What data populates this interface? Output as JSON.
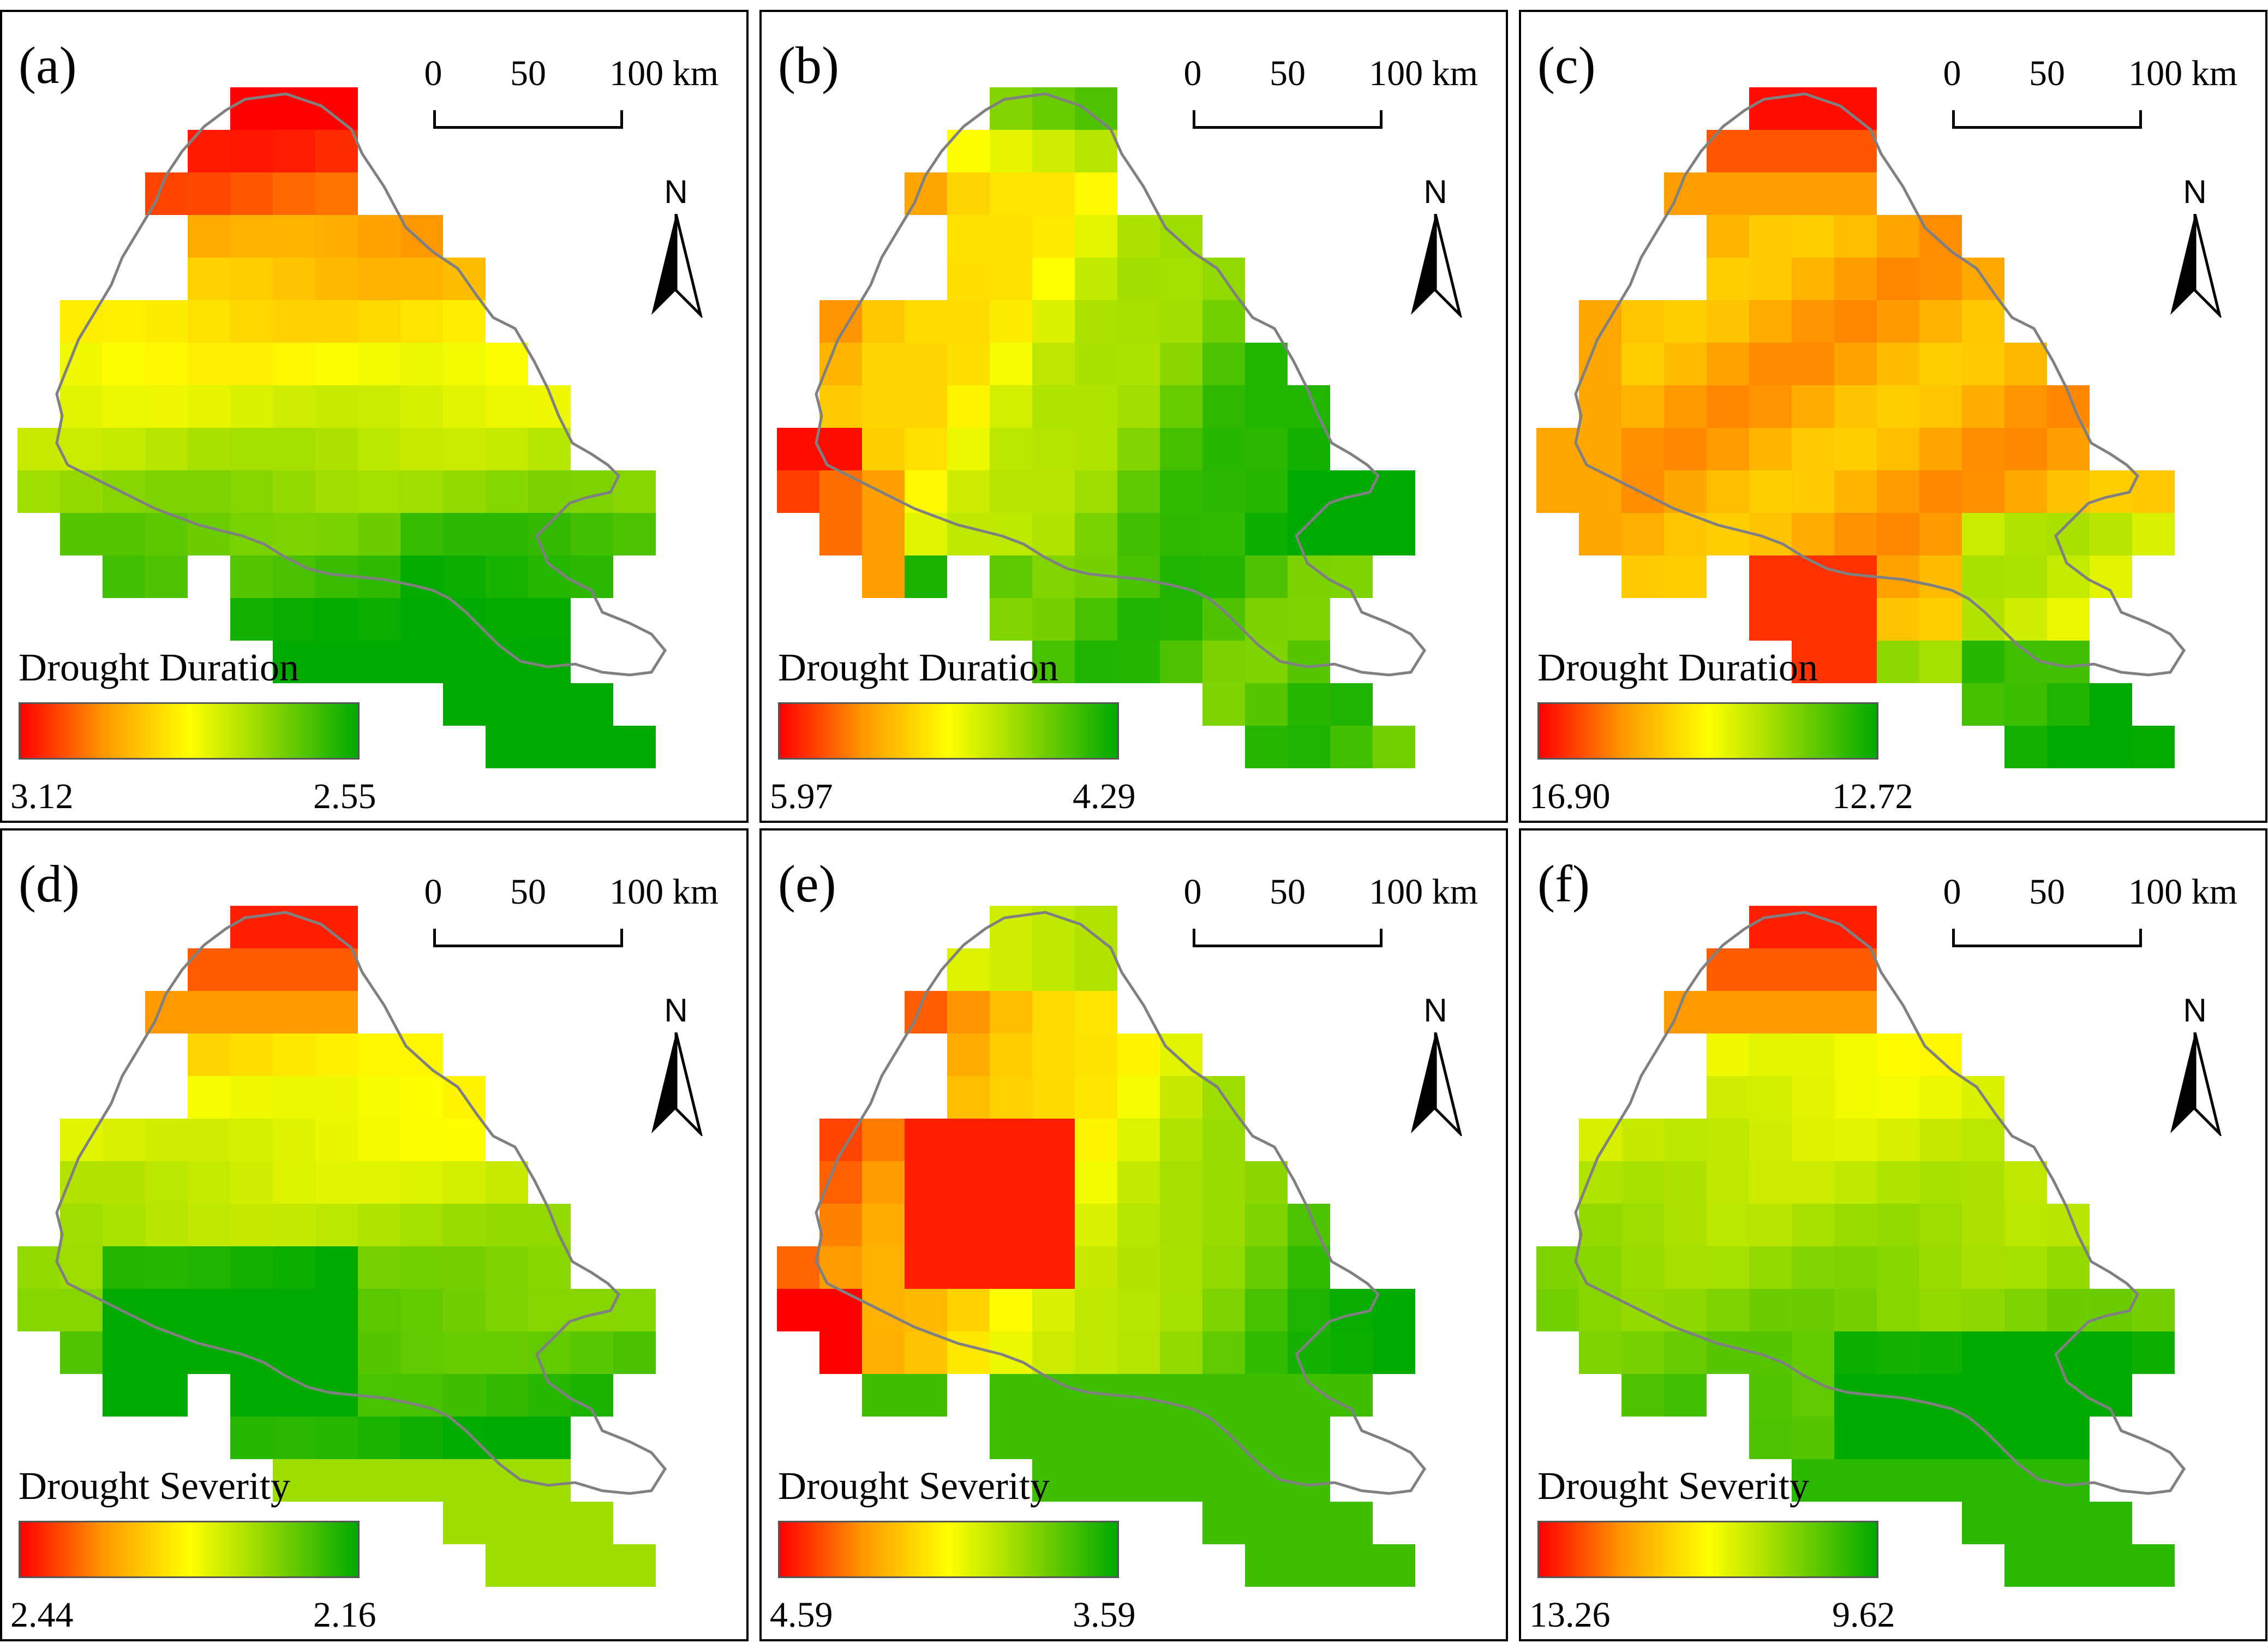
{
  "figure": {
    "scale_bar": {
      "ticks": [
        "0",
        "50",
        "100 km"
      ]
    },
    "north_arrow": {
      "label": "N"
    },
    "palette": {
      "low_color": "#ff0000",
      "mid_color": "#ffff00",
      "high_color": "#00aa00",
      "outline_color": "#808080"
    },
    "panels": [
      {
        "label": "(a)",
        "legend_title": "Drought Duration",
        "legend_min": "3.12",
        "legend_max": "2.55"
      },
      {
        "label": "(b)",
        "legend_title": "Drought Duration",
        "legend_min": "5.97",
        "legend_max": "4.29"
      },
      {
        "label": "(c)",
        "legend_title": "Drought Duration",
        "legend_min": "16.90",
        "legend_max": "12.72"
      },
      {
        "label": "(d)",
        "legend_title": "Drought Severity",
        "legend_min": "2.44",
        "legend_max": "2.16"
      },
      {
        "label": "(e)",
        "legend_title": "Drought Severity",
        "legend_min": "4.59",
        "legend_max": "3.59"
      },
      {
        "label": "(f)",
        "legend_title": "Drought Severity",
        "legend_min": "13.26",
        "legend_max": "9.62"
      }
    ]
  }
}
